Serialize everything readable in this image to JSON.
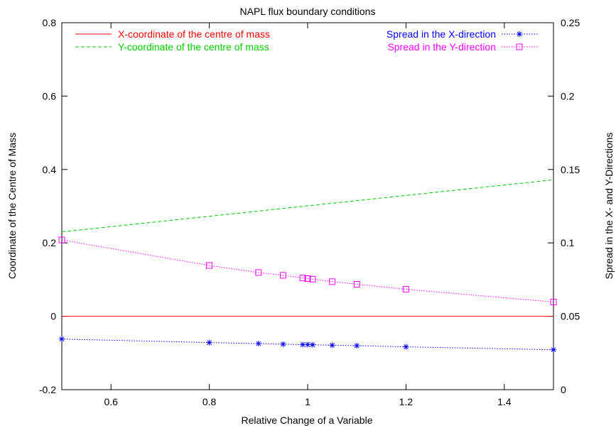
{
  "chart_data": {
    "type": "line",
    "title": "NAPL flux boundary conditions",
    "xlabel": "Relative Change of a Variable",
    "ylabel": "Coordinate of the Centre of Mass",
    "y2label": "Spread in the X- and Y-Directions",
    "xlim": [
      0.5,
      1.5
    ],
    "ylim": [
      -0.2,
      0.8
    ],
    "y2lim": [
      0,
      0.25
    ],
    "xticks": [
      0.6,
      0.8,
      1.0,
      1.2,
      1.4
    ],
    "xtick_labels": [
      "0.6",
      "0.8",
      "1",
      "1.2",
      "1.4"
    ],
    "yticks": [
      -0.2,
      0,
      0.2,
      0.4,
      0.6,
      0.8
    ],
    "ytick_labels": [
      "-0.2",
      "0",
      "0.2",
      "0.4",
      "0.6",
      "0.8"
    ],
    "y2ticks": [
      0,
      0.05,
      0.1,
      0.15,
      0.2,
      0.25
    ],
    "y2tick_labels": [
      "0",
      "0.05",
      "0.1",
      "0.15",
      "0.2",
      "0.25"
    ],
    "grid": false,
    "legend_left": "top-left",
    "legend_right": "top-right",
    "series": [
      {
        "name": "X-coordinate of the centre of mass",
        "axis": "left",
        "color": "#ff0000",
        "dash": "solid",
        "marker": "none",
        "x": [
          0.5,
          1.5
        ],
        "y": [
          0.0,
          0.0
        ]
      },
      {
        "name": "Y-coordinate of the centre of mass",
        "axis": "left",
        "color": "#00cc00",
        "dash": "dashed",
        "marker": "none",
        "x": [
          0.5,
          1.5
        ],
        "y": [
          0.23,
          0.372
        ]
      },
      {
        "name": "Spread in the X-direction",
        "axis": "right",
        "color": "#0000ff",
        "dash": "dotted",
        "marker": "star",
        "x": [
          0.5,
          0.8,
          0.9,
          0.95,
          0.99,
          1.0,
          1.01,
          1.05,
          1.1,
          1.2,
          1.5
        ],
        "y": [
          0.0345,
          0.0321,
          0.0314,
          0.031,
          0.0307,
          0.0307,
          0.0306,
          0.0303,
          0.03,
          0.0292,
          0.0272
        ]
      },
      {
        "name": "Spread in the Y-direction",
        "axis": "right",
        "color": "#ff00ff",
        "dash": "dotted",
        "marker": "square",
        "x": [
          0.5,
          0.8,
          0.9,
          0.95,
          0.99,
          1.0,
          1.01,
          1.05,
          1.1,
          1.2,
          1.5
        ],
        "y": [
          0.102,
          0.0846,
          0.0798,
          0.0779,
          0.0761,
          0.0757,
          0.0753,
          0.0736,
          0.0718,
          0.0684,
          0.0597
        ]
      }
    ]
  }
}
